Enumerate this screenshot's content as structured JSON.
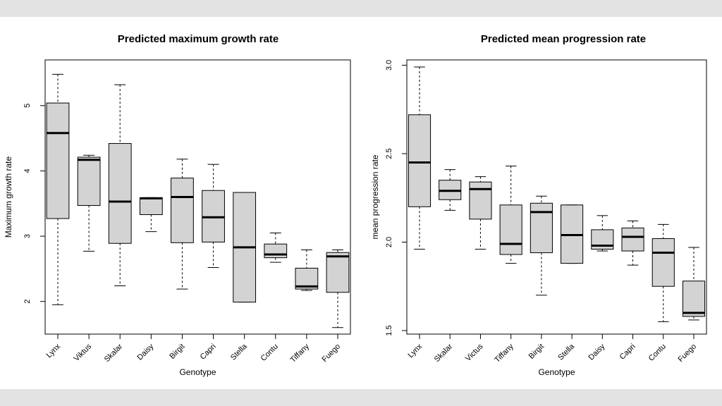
{
  "chart_data": [
    {
      "type": "box",
      "title": "Predicted maximum growth rate",
      "xlabel": "Genotype",
      "ylabel": "Maximum growth rate",
      "ylim": [
        1.5,
        5.7
      ],
      "yticks": [
        2,
        3,
        4,
        5
      ],
      "categories": [
        "Lynx",
        "Viktus",
        "Skalar",
        "Daisy",
        "Birgit",
        "Capri",
        "Stella",
        "Contu",
        "Tiffany",
        "Fuego"
      ],
      "boxes": [
        {
          "min": 1.95,
          "q1": 3.27,
          "median": 4.58,
          "q3": 5.04,
          "max": 5.48
        },
        {
          "min": 2.77,
          "q1": 3.47,
          "median": 4.17,
          "q3": 4.21,
          "max": 4.24
        },
        {
          "min": 2.24,
          "q1": 2.89,
          "median": 3.53,
          "q3": 4.42,
          "max": 5.32
        },
        {
          "min": 3.07,
          "q1": 3.33,
          "median": 3.58,
          "q3": 3.59,
          "max": 3.59
        },
        {
          "min": 2.19,
          "q1": 2.9,
          "median": 3.6,
          "q3": 3.89,
          "max": 4.18
        },
        {
          "min": 2.52,
          "q1": 2.91,
          "median": 3.29,
          "q3": 3.7,
          "max": 4.1
        },
        {
          "min": 1.99,
          "q1": 1.99,
          "median": 2.83,
          "q3": 3.67,
          "max": 3.67
        },
        {
          "min": 2.6,
          "q1": 2.67,
          "median": 2.72,
          "q3": 2.88,
          "max": 3.05
        },
        {
          "min": 2.17,
          "q1": 2.19,
          "median": 2.23,
          "q3": 2.51,
          "max": 2.79
        },
        {
          "min": 1.6,
          "q1": 2.14,
          "median": 2.69,
          "q3": 2.75,
          "max": 2.79
        }
      ]
    },
    {
      "type": "box",
      "title": "Predicted mean progression rate",
      "xlabel": "Genotype",
      "ylabel": "mean progression rate",
      "ylim": [
        1.48,
        3.03
      ],
      "yticks": [
        1.5,
        2.0,
        2.5,
        3.0
      ],
      "ytick_labels": [
        "1.5",
        "2.0",
        "2.5",
        "3.0"
      ],
      "categories": [
        "Lynx",
        "Skalar",
        "Victus",
        "Tiffany",
        "Birgit",
        "Stella",
        "Daisy",
        "Capri",
        "Contu",
        "Fuego"
      ],
      "boxes": [
        {
          "min": 1.96,
          "q1": 2.2,
          "median": 2.45,
          "q3": 2.72,
          "max": 2.99
        },
        {
          "min": 2.18,
          "q1": 2.24,
          "median": 2.29,
          "q3": 2.35,
          "max": 2.41
        },
        {
          "min": 1.96,
          "q1": 2.13,
          "median": 2.3,
          "q3": 2.34,
          "max": 2.37
        },
        {
          "min": 1.88,
          "q1": 1.93,
          "median": 1.99,
          "q3": 2.21,
          "max": 2.43
        },
        {
          "min": 1.7,
          "q1": 1.94,
          "median": 2.17,
          "q3": 2.22,
          "max": 2.26
        },
        {
          "min": 1.88,
          "q1": 1.88,
          "median": 2.04,
          "q3": 2.21,
          "max": 2.21
        },
        {
          "min": 1.95,
          "q1": 1.96,
          "median": 1.98,
          "q3": 2.07,
          "max": 2.15
        },
        {
          "min": 1.87,
          "q1": 1.95,
          "median": 2.03,
          "q3": 2.08,
          "max": 2.12
        },
        {
          "min": 1.55,
          "q1": 1.75,
          "median": 1.94,
          "q3": 2.02,
          "max": 2.1
        },
        {
          "min": 1.56,
          "q1": 1.58,
          "median": 1.6,
          "q3": 1.78,
          "max": 1.97
        }
      ]
    }
  ],
  "colors": {
    "box_fill": "#d3d3d3",
    "stroke": "#000000",
    "page_frame": "#e3e3e3",
    "panel": "#ffffff"
  }
}
